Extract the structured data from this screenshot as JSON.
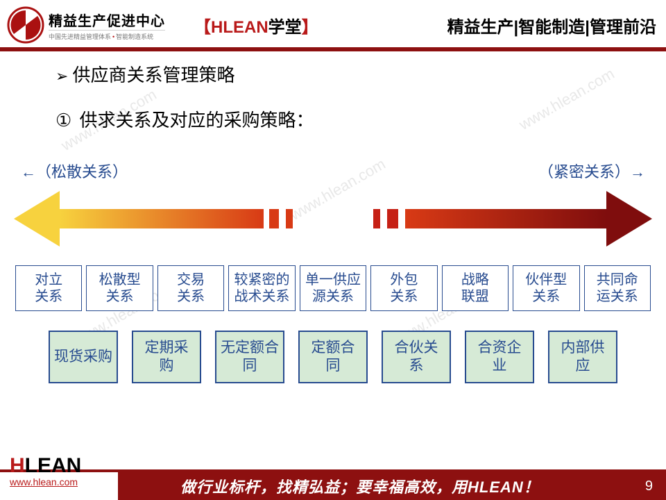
{
  "header": {
    "logo_main": "精益生产促进中心",
    "logo_sub_a": "中国先进精益管理体系",
    "logo_sub_b": "智能制造系统",
    "center_bracket_l": "【",
    "center_hlean": "HLEAN",
    "center_black": "学堂",
    "center_bracket_r": "】",
    "right": "精益生产|智能制造|管理前沿"
  },
  "content": {
    "title_bullet": "➢",
    "title": "供应商关系管理策略",
    "sub_num": "①",
    "sub": "供求关系及对应的采购策略：",
    "loose_label": "←（松散关系）",
    "tight_label": "（紧密关系）→",
    "relationships": [
      "对立\n关系",
      "松散型\n关系",
      "交易\n关系",
      "较紧密的\n战术关系",
      "单一供应\n源关系",
      "外包\n关系",
      "战略\n联盟",
      "伙伴型\n关系",
      "共同命\n运关系"
    ],
    "procurement": [
      "现货采购",
      "定期采\n购",
      "无定额合\n同",
      "定额合\n同",
      "合伙关\n系",
      "合资企\n业",
      "内部供\n应"
    ]
  },
  "arrow": {
    "color_yellow": "#f7d23e",
    "color_orange": "#ec6a1a",
    "color_red_mid": "#c62015",
    "color_red_dark": "#7f0d0d",
    "shaft_height": 28,
    "head_size": 46
  },
  "footer": {
    "logo_h": "H",
    "logo_lean": "LEAN",
    "url": "www.hlean.com",
    "slogan": "做行业标杆，找精弘益；要幸福高效，用HLEAN！",
    "page": "9"
  },
  "watermark": "www.hlean.com"
}
